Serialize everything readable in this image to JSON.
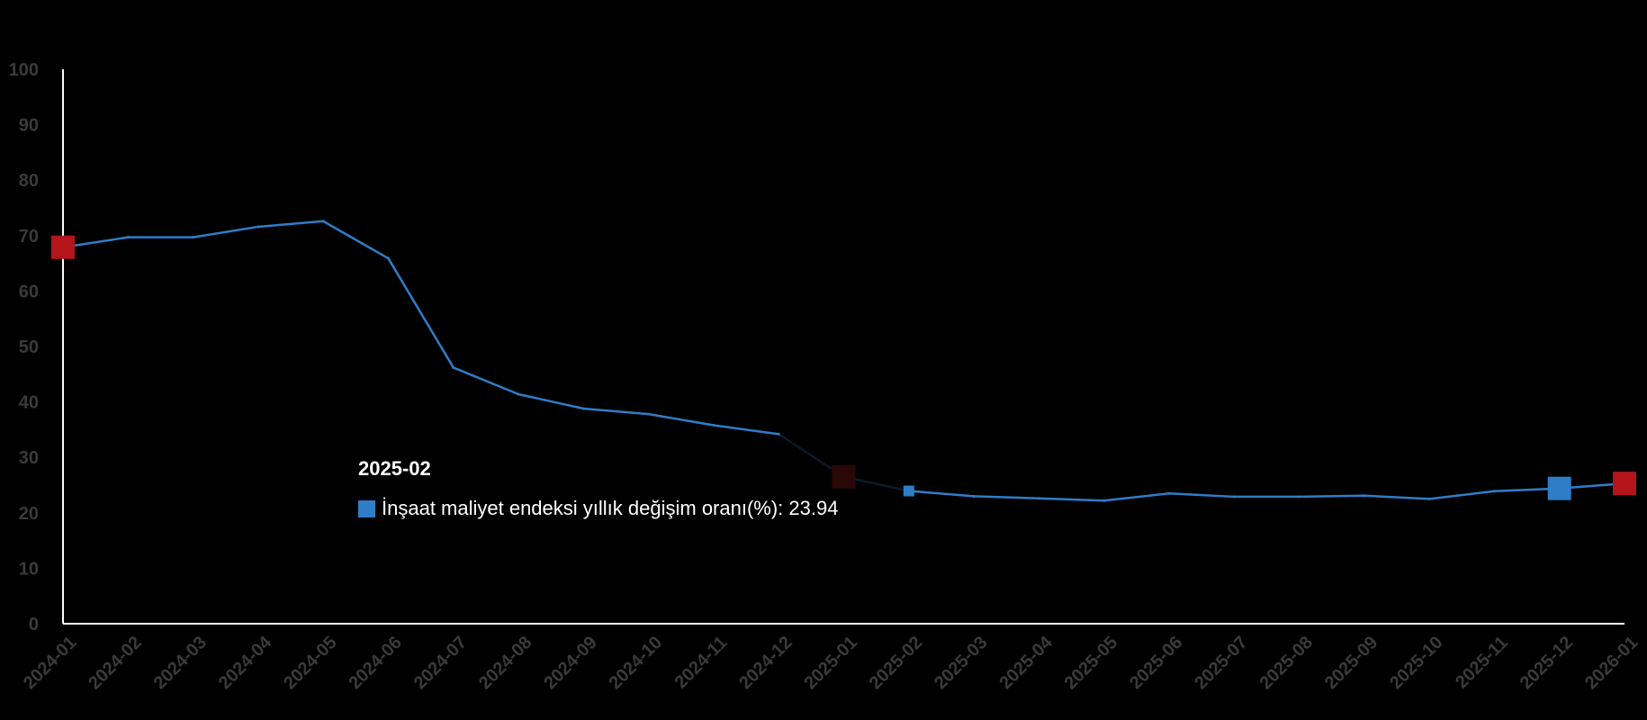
{
  "chart_data": {
    "type": "line",
    "title": "",
    "xlabel": "",
    "ylabel": "",
    "ylim": [
      0,
      100
    ],
    "yticks": [
      0,
      10,
      20,
      30,
      40,
      50,
      60,
      70,
      80,
      90,
      100
    ],
    "grid": false,
    "legend": "none",
    "categories": [
      "2024-01",
      "2024-02",
      "2024-03",
      "2024-04",
      "2024-05",
      "2024-06",
      "2024-07",
      "2024-08",
      "2024-09",
      "2024-10",
      "2024-11",
      "2024-12",
      "2025-01",
      "2025-02",
      "2025-03",
      "2025-04",
      "2025-05",
      "2025-06",
      "2025-07",
      "2025-08",
      "2025-09",
      "2025-10",
      "2025-11",
      "2025-12",
      "2026-01"
    ],
    "series": [
      {
        "name": "İnşaat maliyet endeksi yıllık değişim oranı(%)",
        "color": "#2f7dc8",
        "values": [
          67.9,
          69.7,
          69.7,
          71.6,
          72.6,
          65.9,
          46.2,
          41.4,
          38.8,
          37.8,
          35.8,
          34.2,
          26.5,
          23.94,
          23.0,
          22.6,
          22.2,
          23.5,
          22.9,
          22.9,
          23.1,
          22.5,
          23.9,
          24.4,
          25.3
        ]
      }
    ],
    "markers": [
      {
        "index": 0,
        "color": "#b3151b"
      },
      {
        "index": 12,
        "color": "#2a0808"
      },
      {
        "index": 23,
        "color": "#2f7dc8"
      },
      {
        "index": 24,
        "color": "#b3151b"
      }
    ],
    "tooltip": {
      "title": "2025-02",
      "label": "İnşaat maliyet endeksi yıllık değişim oranı(%): 23.94"
    }
  }
}
